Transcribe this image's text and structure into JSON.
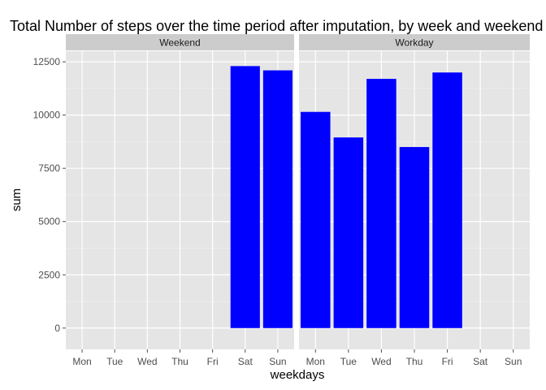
{
  "chart_data": {
    "type": "bar",
    "title": "Total Number of steps over the time period after imputation, by week and weekend",
    "xlabel": "weekdays",
    "ylabel": "sum",
    "categories": [
      "Mon",
      "Tue",
      "Wed",
      "Thu",
      "Fri",
      "Sat",
      "Sun"
    ],
    "ylim": [
      -1000,
      13000
    ],
    "yticks": [
      0,
      2500,
      5000,
      7500,
      10000,
      12500
    ],
    "ytick_labels": [
      "0",
      "2500",
      "5000",
      "7500",
      "10000",
      "12500"
    ],
    "bar_color": "#0000ff",
    "panel_background": "#e5e5e5",
    "strip_background": "#cccccc",
    "grid": true,
    "legend": "none",
    "panels": [
      {
        "name": "Weekend",
        "values": [
          null,
          null,
          null,
          null,
          null,
          12300,
          12100
        ]
      },
      {
        "name": "Workday",
        "values": [
          10150,
          8950,
          11700,
          8500,
          12000,
          null,
          null
        ]
      }
    ]
  }
}
